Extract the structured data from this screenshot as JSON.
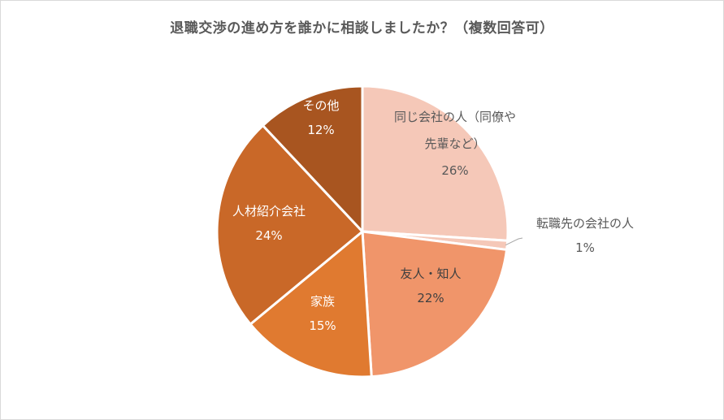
{
  "chart_data": {
    "type": "pie",
    "title": "退職交渉の進め方を誰かに相談しましたか？（複数回答可）",
    "slices": [
      {
        "label_lines": [
          "同じ会社の人（同僚や",
          "先輩など）"
        ],
        "percent_label": "26%",
        "value": 26,
        "color": "#F5C8B8",
        "text_color": "#595959"
      },
      {
        "label_lines": [
          "転職先の会社の人"
        ],
        "percent_label": "1%",
        "value": 1,
        "color": "#F5C8B8",
        "text_color": "#595959"
      },
      {
        "label_lines": [
          "友人・知人"
        ],
        "percent_label": "22%",
        "value": 22,
        "color": "#F0956A",
        "text_color": "#404040"
      },
      {
        "label_lines": [
          "家族"
        ],
        "percent_label": "15%",
        "value": 15,
        "color": "#E07A30",
        "text_color": "#ffffff"
      },
      {
        "label_lines": [
          "人材紹介会社"
        ],
        "percent_label": "24%",
        "value": 24,
        "color": "#C96828",
        "text_color": "#ffffff"
      },
      {
        "label_lines": [
          "その他"
        ],
        "percent_label": "12%",
        "value": 12,
        "color": "#A85520",
        "text_color": "#ffffff"
      }
    ],
    "legend": "none",
    "start_angle": "top",
    "direction": "clockwise"
  }
}
